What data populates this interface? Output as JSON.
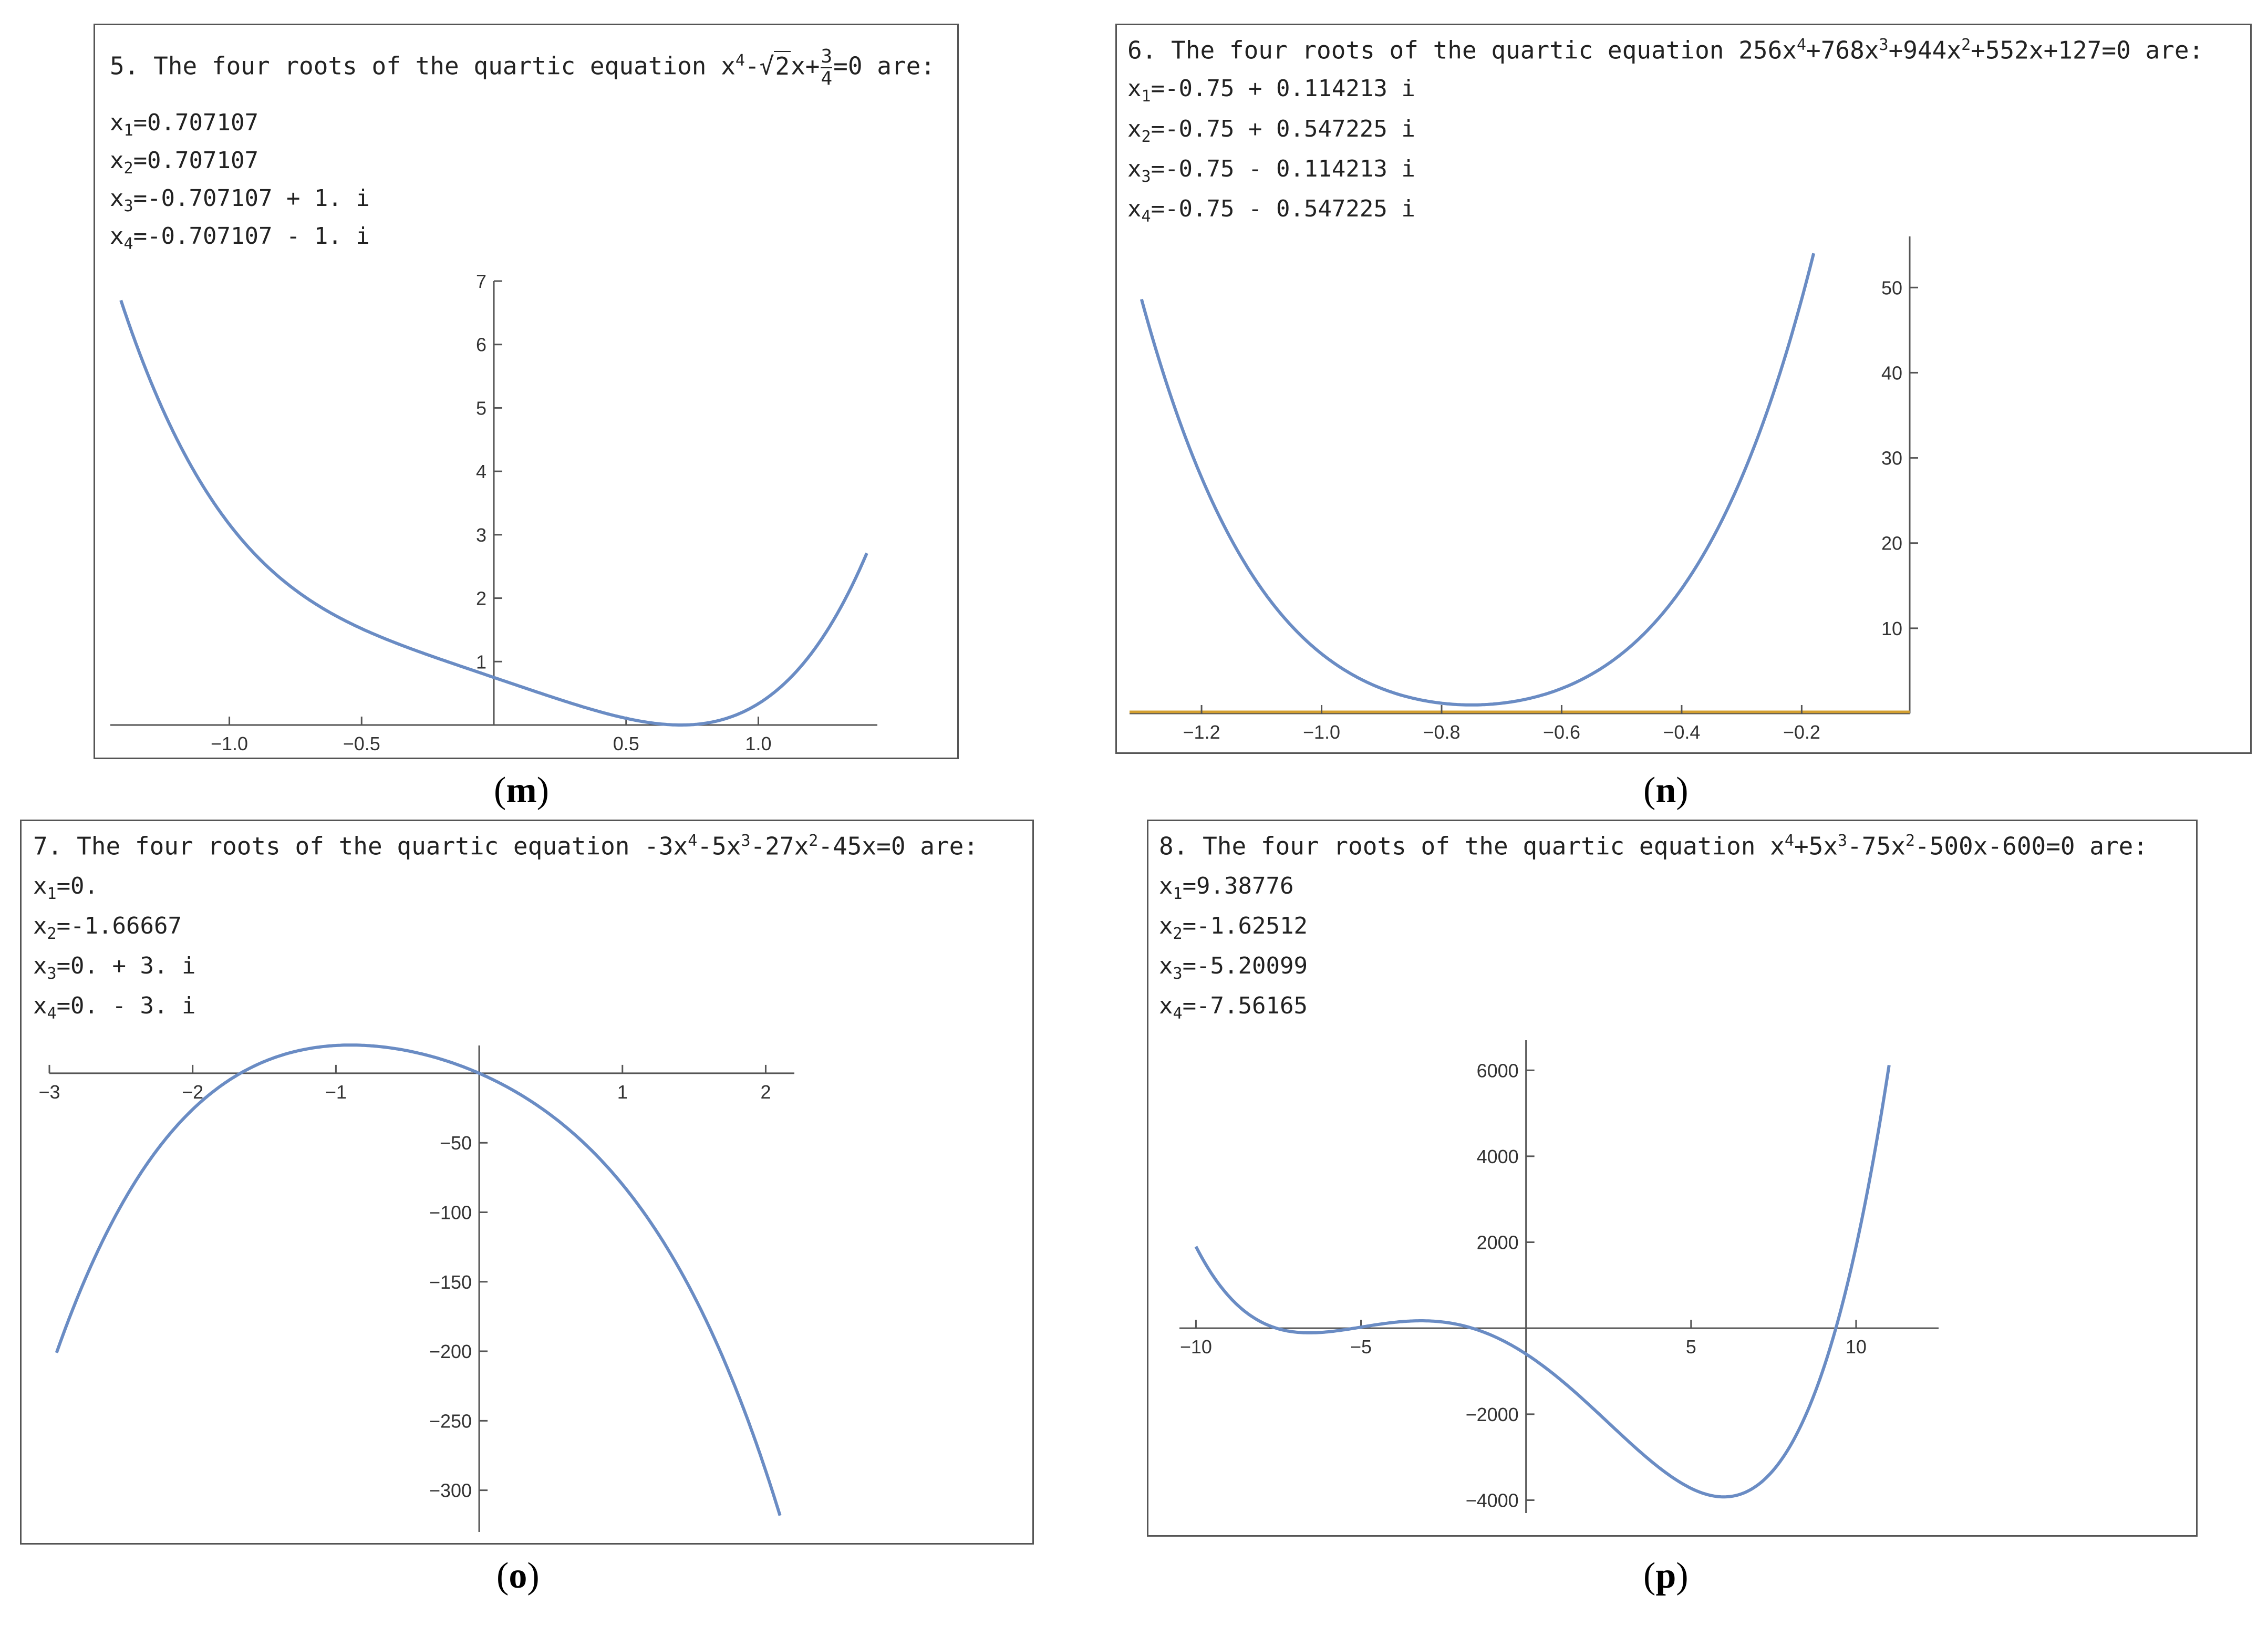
{
  "colors": {
    "curve": "#6a8cc4",
    "axis": "#555555",
    "zeroline": "#d4a030"
  },
  "charts": {
    "m": {
      "caption_letter": "m",
      "header": {
        "number": "5.",
        "text": "The four roots of the quartic equation",
        "eq_a": "x",
        "eq_sup": "4",
        "eq_b": "-",
        "eq_sqrt": "2",
        "eq_c": "x+",
        "frac_num": "3",
        "frac_den": "4",
        "eq_end": "=0 are:"
      },
      "roots": [
        {
          "sym": "x",
          "idx": "1",
          "val": "=0.707107"
        },
        {
          "sym": "x",
          "idx": "2",
          "val": "=0.707107"
        },
        {
          "sym": "x",
          "idx": "3",
          "val": "=-0.707107 + 1. i"
        },
        {
          "sym": "x",
          "idx": "4",
          "val": "=-0.707107 - 1. i"
        }
      ]
    },
    "n": {
      "caption_letter": "n",
      "header": {
        "number": "6.",
        "text": "The four roots of the quartic equation",
        "p1": "256x",
        "s1": "4",
        "p2": "+768x",
        "s2": "3",
        "p3": "+944x",
        "s3": "2",
        "p4": "+552x+127=0 are:"
      },
      "roots": [
        {
          "sym": "x",
          "idx": "1",
          "val": "=-0.75 + 0.114213 i"
        },
        {
          "sym": "x",
          "idx": "2",
          "val": "=-0.75 + 0.547225 i"
        },
        {
          "sym": "x",
          "idx": "3",
          "val": "=-0.75 - 0.114213 i"
        },
        {
          "sym": "x",
          "idx": "4",
          "val": "=-0.75 - 0.547225 i"
        }
      ]
    },
    "o": {
      "caption_letter": "o",
      "header": {
        "number": "7.",
        "text": "The four roots of the quartic equation",
        "p1": "-3x",
        "s1": "4",
        "p2": "-5x",
        "s2": "3",
        "p3": "-27x",
        "s3": "2",
        "p4": "-45x=0 are:"
      },
      "roots": [
        {
          "sym": "x",
          "idx": "1",
          "val": "=0."
        },
        {
          "sym": "x",
          "idx": "2",
          "val": "=-1.66667"
        },
        {
          "sym": "x",
          "idx": "3",
          "val": "=0. + 3. i"
        },
        {
          "sym": "x",
          "idx": "4",
          "val": "=0. - 3. i"
        }
      ]
    },
    "p": {
      "caption_letter": "p",
      "header": {
        "number": "8.",
        "text": "The four roots of the quartic equation",
        "p1": "x",
        "s1": "4",
        "p2": "+5x",
        "s2": "3",
        "p3": "-75x",
        "s3": "2",
        "p4": "-500x-600=0 are:"
      },
      "roots": [
        {
          "sym": "x",
          "idx": "1",
          "val": "=9.38776"
        },
        {
          "sym": "x",
          "idx": "2",
          "val": "=-1.62512"
        },
        {
          "sym": "x",
          "idx": "3",
          "val": "=-5.20099"
        },
        {
          "sym": "x",
          "idx": "4",
          "val": "=-7.56165"
        }
      ]
    }
  },
  "chart_data": [
    {
      "type": "line",
      "id": "m",
      "title": "5. The four roots of the quartic equation x^4 - sqrt(2)x + 3/4 = 0 are:",
      "function": "x^4 - 1.41421356*x + 0.75",
      "coefficients": [
        1,
        0,
        0,
        -1.41421356,
        0.75
      ],
      "xlim": [
        -1.45,
        1.45
      ],
      "ylim": [
        0,
        7
      ],
      "x_ticks": [
        -1.0,
        -0.5,
        0.5,
        1.0
      ],
      "x_tick_labels": [
        "−1.0",
        "−0.5",
        "0.5",
        "1.0"
      ],
      "y_ticks": [
        1,
        2,
        3,
        4,
        5,
        6,
        7
      ],
      "y_tick_labels": [
        "1",
        "2",
        "3",
        "4",
        "5",
        "6",
        "7"
      ],
      "domain": [
        -1.41,
        1.41
      ]
    },
    {
      "type": "line",
      "id": "n",
      "title": "6. The four roots of the quartic equation 256x^4+768x^3+944x^2+552x+127=0 are:",
      "function": "256x^4+768x^3+944x^2+552x+127",
      "coefficients": [
        256,
        768,
        944,
        552,
        127
      ],
      "xlim": [
        -1.32,
        -0.02
      ],
      "ylim": [
        0,
        56
      ],
      "x_ticks": [
        -1.2,
        -1.0,
        -0.8,
        -0.6,
        -0.4,
        -0.2
      ],
      "x_tick_labels": [
        "−1.2",
        "−1.0",
        "−0.8",
        "−0.6",
        "−0.4",
        "−0.2"
      ],
      "y_ticks": [
        10,
        20,
        30,
        40,
        50
      ],
      "y_tick_labels": [
        "10",
        "20",
        "30",
        "40",
        "50"
      ],
      "domain": [
        -1.3,
        -0.18
      ]
    },
    {
      "type": "line",
      "id": "o",
      "title": "7. The four roots of the quartic equation -3x^4-5x^3-27x^2-45x=0 are:",
      "function": "-3x^4-5x^3-27x^2-45x",
      "coefficients": [
        -3,
        -5,
        -27,
        -45,
        0
      ],
      "xlim": [
        -3.0,
        2.2
      ],
      "ylim": [
        -330,
        20
      ],
      "x_ticks": [
        -3,
        -2,
        -1,
        1,
        2
      ],
      "x_tick_labels": [
        "−3",
        "−2",
        "−1",
        "1",
        "2"
      ],
      "y_ticks": [
        -50,
        -100,
        -150,
        -200,
        -250,
        -300
      ],
      "y_tick_labels": [
        "−50",
        "−100",
        "−150",
        "−200",
        "−250",
        "−300"
      ],
      "domain": [
        -2.95,
        2.1
      ]
    },
    {
      "type": "line",
      "id": "p",
      "title": "8. The four roots of the quartic equation x^4+5x^3-75x^2-500x-600=0 are:",
      "function": "x^4+5x^3-75x^2-500x-600",
      "coefficients": [
        1,
        5,
        -75,
        -500,
        -600
      ],
      "xlim": [
        -10.5,
        12.5
      ],
      "ylim": [
        -4300,
        6700
      ],
      "x_ticks": [
        -10,
        -5,
        5,
        10
      ],
      "x_tick_labels": [
        "−10",
        "−5",
        "5",
        "10"
      ],
      "y_ticks": [
        -4000,
        -2000,
        2000,
        4000,
        6000
      ],
      "y_tick_labels": [
        "−4000",
        "−2000",
        "2000",
        "4000",
        "6000"
      ],
      "domain": [
        -10,
        11
      ]
    }
  ]
}
